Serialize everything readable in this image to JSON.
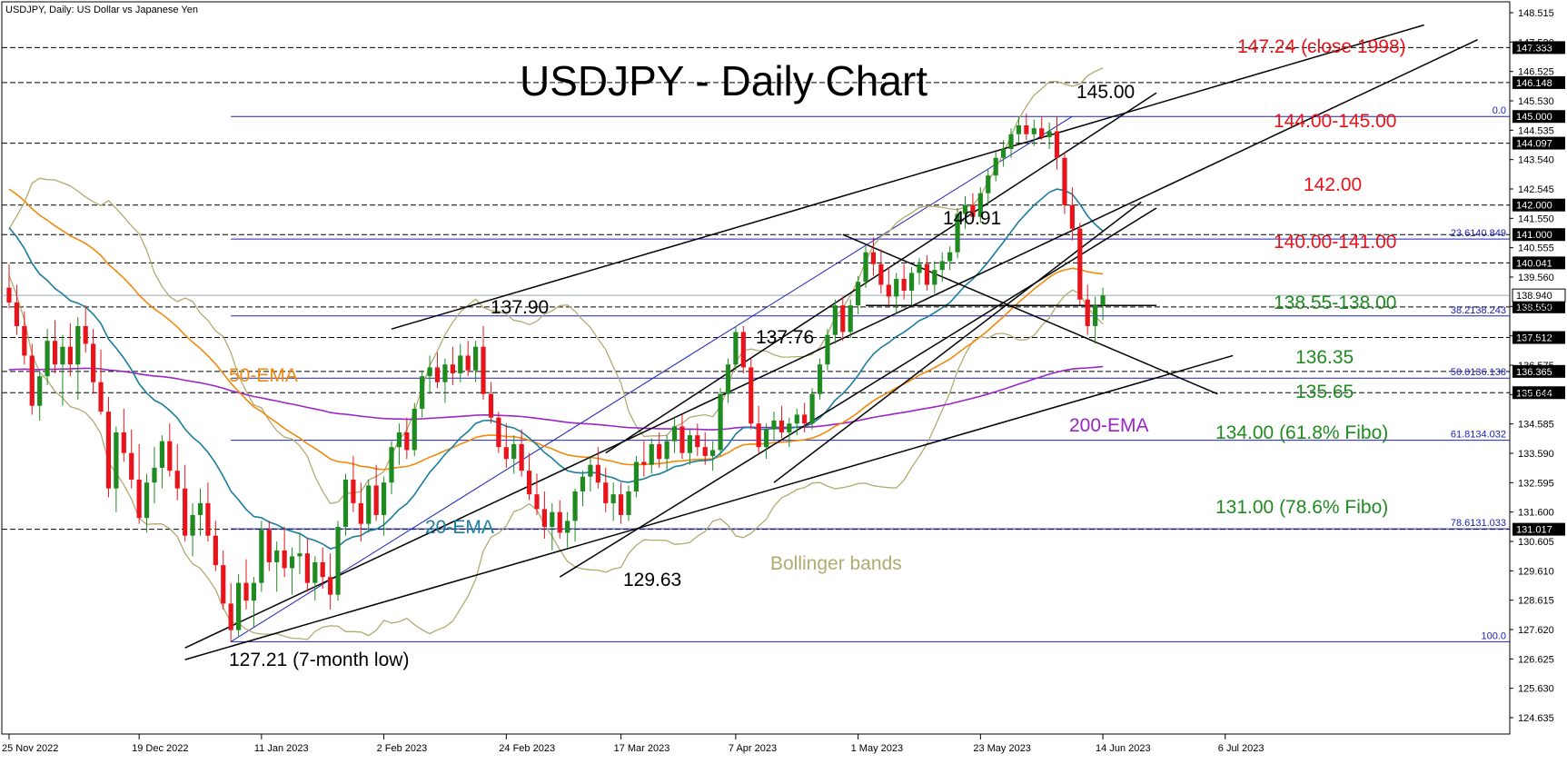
{
  "header": {
    "symbol_text": "USDJPY, Daily:  US Dollar vs Japanese Yen"
  },
  "chart_data": {
    "type": "candlestick",
    "title": "USDJPY - Daily Chart",
    "y_ticks": [
      "148.515",
      "147.520",
      "146.525",
      "145.530",
      "144.535",
      "143.540",
      "142.545",
      "141.550",
      "140.555",
      "139.560",
      "138.565",
      "137.570",
      "136.575",
      "135.580",
      "134.585",
      "133.590",
      "132.595",
      "131.600",
      "130.605",
      "129.610",
      "128.615",
      "127.620",
      "126.625",
      "125.630",
      "124.635"
    ],
    "y_tick_values": [
      148.515,
      147.52,
      146.525,
      145.53,
      144.535,
      143.54,
      142.545,
      141.55,
      140.555,
      139.56,
      138.565,
      137.57,
      136.575,
      135.58,
      134.585,
      133.59,
      132.595,
      131.6,
      130.605,
      129.61,
      128.615,
      127.62,
      126.625,
      125.63,
      124.635
    ],
    "x_labels": [
      {
        "label": "25 Nov 2022",
        "i": 0
      },
      {
        "label": "19 Dec 2022",
        "i": 17
      },
      {
        "label": "11 Jan 2023",
        "i": 33
      },
      {
        "label": "2 Feb 2023",
        "i": 49
      },
      {
        "label": "24 Feb 2023",
        "i": 65
      },
      {
        "label": "17 Mar 2023",
        "i": 80
      },
      {
        "label": "7 Apr 2023",
        "i": 95
      },
      {
        "label": "1 May 2023",
        "i": 111
      },
      {
        "label": "23 May 2023",
        "i": 127
      },
      {
        "label": "14 Jun 2023",
        "i": 143
      },
      {
        "label": "6 Jul 2023",
        "i": 159
      }
    ],
    "horizontal_levels": [
      {
        "value": 147.333,
        "label": "147.333"
      },
      {
        "value": 146.148,
        "label": "146.148"
      },
      {
        "value": 144.097,
        "label": "144.097"
      },
      {
        "value": 142.0,
        "label": "142.000"
      },
      {
        "value": 141.0,
        "label": "141.000"
      },
      {
        "value": 140.041,
        "label": "140.041"
      },
      {
        "value": 138.55,
        "label": "138.550"
      },
      {
        "value": 137.512,
        "label": "137.512"
      },
      {
        "value": 136.365,
        "label": "136.365"
      },
      {
        "value": 135.644,
        "label": "135.644"
      },
      {
        "value": 131.017,
        "label": "131.017"
      }
    ],
    "current_price": {
      "value": 138.94,
      "label": "138.940"
    },
    "fibonacci": [
      {
        "value": 145.0,
        "label": "0.0",
        "box": "145.000"
      },
      {
        "value": 140.849,
        "label": "23.6140.849"
      },
      {
        "value": 138.243,
        "label": "38.2138.243"
      },
      {
        "value": 136.138,
        "label": "50.0136.138"
      },
      {
        "value": 134.032,
        "label": "61.8134.032"
      },
      {
        "value": 131.033,
        "label": "78.6131.033"
      },
      {
        "value": 127.21,
        "label": "100.0"
      }
    ],
    "candles": [
      [
        139.2,
        140.0,
        138.5,
        138.7
      ],
      [
        138.7,
        139.3,
        137.6,
        137.9
      ],
      [
        137.9,
        138.4,
        136.6,
        136.9
      ],
      [
        136.9,
        137.3,
        134.9,
        135.2
      ],
      [
        135.2,
        136.4,
        134.7,
        136.2
      ],
      [
        136.2,
        137.8,
        135.9,
        137.4
      ],
      [
        137.4,
        138.1,
        136.3,
        136.6
      ],
      [
        136.6,
        137.6,
        135.2,
        137.2
      ],
      [
        137.2,
        138.0,
        136.2,
        136.6
      ],
      [
        136.6,
        138.2,
        135.4,
        137.9
      ],
      [
        137.9,
        138.6,
        137.0,
        137.3
      ],
      [
        137.3,
        137.8,
        135.6,
        136.0
      ],
      [
        136.0,
        137.1,
        134.9,
        135.0
      ],
      [
        135.0,
        135.5,
        132.1,
        132.4
      ],
      [
        132.4,
        134.5,
        131.6,
        134.3
      ],
      [
        134.3,
        135.1,
        133.3,
        133.6
      ],
      [
        133.6,
        134.4,
        132.4,
        132.7
      ],
      [
        132.7,
        133.9,
        131.2,
        131.4
      ],
      [
        131.4,
        132.9,
        130.9,
        132.6
      ],
      [
        132.6,
        133.8,
        131.9,
        133.1
      ],
      [
        133.1,
        134.2,
        132.4,
        134.0
      ],
      [
        134.0,
        134.6,
        132.8,
        133.0
      ],
      [
        133.0,
        133.9,
        132.0,
        132.4
      ],
      [
        132.4,
        133.2,
        130.6,
        130.8
      ],
      [
        130.8,
        131.9,
        130.1,
        131.5
      ],
      [
        131.5,
        132.4,
        130.8,
        131.9
      ],
      [
        131.9,
        132.6,
        130.6,
        130.8
      ],
      [
        130.8,
        131.3,
        129.6,
        129.8
      ],
      [
        129.8,
        130.3,
        128.3,
        128.5
      ],
      [
        128.5,
        129.2,
        127.2,
        127.6
      ],
      [
        127.6,
        129.5,
        127.4,
        129.2
      ],
      [
        129.2,
        130.0,
        128.3,
        128.6
      ],
      [
        128.6,
        129.4,
        127.7,
        129.2
      ],
      [
        129.2,
        131.3,
        128.9,
        131.0
      ],
      [
        131.0,
        131.3,
        129.6,
        129.9
      ],
      [
        129.9,
        130.6,
        128.9,
        130.3
      ],
      [
        130.3,
        131.1,
        129.4,
        129.7
      ],
      [
        129.7,
        130.4,
        128.8,
        130.1
      ],
      [
        130.1,
        130.9,
        129.5,
        130.2
      ],
      [
        130.2,
        130.7,
        128.9,
        129.2
      ],
      [
        129.2,
        130.1,
        128.6,
        129.9
      ],
      [
        129.9,
        130.4,
        129.0,
        129.4
      ],
      [
        129.4,
        130.2,
        128.3,
        128.8
      ],
      [
        128.8,
        131.3,
        128.6,
        131.1
      ],
      [
        131.1,
        132.9,
        130.8,
        132.7
      ],
      [
        132.7,
        133.5,
        131.6,
        131.9
      ],
      [
        131.9,
        132.6,
        130.6,
        131.2
      ],
      [
        131.2,
        132.7,
        130.9,
        132.5
      ],
      [
        132.5,
        133.2,
        131.3,
        131.5
      ],
      [
        131.5,
        132.8,
        130.8,
        132.6
      ],
      [
        132.6,
        134.0,
        132.2,
        133.8
      ],
      [
        133.8,
        134.6,
        133.2,
        134.3
      ],
      [
        134.3,
        134.8,
        133.4,
        133.7
      ],
      [
        133.7,
        135.3,
        133.5,
        135.1
      ],
      [
        135.1,
        136.4,
        134.8,
        136.2
      ],
      [
        136.2,
        136.9,
        135.6,
        136.5
      ],
      [
        136.5,
        137.0,
        135.8,
        136.0
      ],
      [
        136.0,
        136.8,
        135.3,
        136.6
      ],
      [
        136.6,
        137.2,
        135.9,
        136.3
      ],
      [
        136.3,
        137.3,
        136.0,
        136.9
      ],
      [
        136.9,
        137.4,
        136.2,
        136.4
      ],
      [
        136.4,
        137.4,
        136.0,
        137.2
      ],
      [
        137.2,
        137.9,
        135.4,
        135.6
      ],
      [
        135.6,
        136.0,
        134.6,
        134.8
      ],
      [
        134.8,
        135.0,
        133.6,
        133.8
      ],
      [
        133.8,
        134.6,
        133.1,
        133.4
      ],
      [
        133.4,
        134.2,
        132.9,
        133.9
      ],
      [
        133.9,
        134.4,
        132.8,
        133.0
      ],
      [
        133.0,
        133.6,
        132.0,
        132.2
      ],
      [
        132.2,
        132.9,
        131.5,
        131.7
      ],
      [
        131.7,
        132.3,
        130.7,
        131.1
      ],
      [
        131.1,
        131.9,
        130.3,
        131.6
      ],
      [
        131.6,
        132.0,
        130.7,
        130.9
      ],
      [
        130.9,
        131.6,
        130.4,
        131.3
      ],
      [
        131.3,
        132.4,
        130.6,
        132.3
      ],
      [
        132.3,
        133.0,
        131.8,
        132.8
      ],
      [
        132.8,
        133.5,
        132.3,
        133.2
      ],
      [
        133.2,
        133.8,
        132.4,
        132.6
      ],
      [
        132.6,
        133.1,
        131.6,
        131.9
      ],
      [
        131.9,
        132.6,
        131.3,
        132.2
      ],
      [
        132.2,
        132.6,
        131.2,
        131.5
      ],
      [
        131.5,
        132.5,
        131.3,
        132.3
      ],
      [
        132.3,
        133.5,
        132.1,
        133.3
      ],
      [
        133.3,
        134.0,
        132.8,
        133.2
      ],
      [
        133.2,
        134.1,
        132.9,
        133.9
      ],
      [
        133.9,
        134.3,
        133.1,
        133.4
      ],
      [
        133.4,
        134.2,
        133.0,
        134.0
      ],
      [
        134.0,
        134.8,
        133.6,
        134.5
      ],
      [
        134.5,
        134.9,
        133.4,
        133.6
      ],
      [
        133.6,
        134.4,
        133.2,
        134.2
      ],
      [
        134.2,
        134.6,
        133.5,
        133.8
      ],
      [
        133.8,
        134.3,
        133.2,
        133.5
      ],
      [
        133.5,
        134.0,
        133.0,
        133.7
      ],
      [
        133.7,
        135.8,
        133.5,
        135.6
      ],
      [
        135.6,
        136.8,
        135.3,
        136.6
      ],
      [
        136.6,
        137.9,
        136.4,
        137.7
      ],
      [
        137.7,
        137.9,
        136.3,
        136.5
      ],
      [
        136.5,
        136.8,
        134.4,
        134.6
      ],
      [
        134.6,
        135.2,
        133.6,
        133.8
      ],
      [
        133.8,
        134.6,
        133.4,
        134.4
      ],
      [
        134.4,
        135.0,
        134.0,
        134.7
      ],
      [
        134.7,
        135.2,
        134.1,
        134.3
      ],
      [
        134.3,
        134.8,
        133.8,
        134.6
      ],
      [
        134.6,
        135.1,
        134.2,
        134.9
      ],
      [
        134.9,
        135.3,
        134.3,
        134.6
      ],
      [
        134.6,
        135.8,
        134.4,
        135.6
      ],
      [
        135.6,
        136.8,
        135.4,
        136.6
      ],
      [
        136.6,
        137.8,
        136.4,
        137.6
      ],
      [
        137.6,
        138.8,
        137.3,
        138.6
      ],
      [
        138.6,
        138.9,
        137.4,
        137.7
      ],
      [
        137.7,
        138.8,
        137.5,
        138.6
      ],
      [
        138.6,
        139.6,
        138.3,
        139.4
      ],
      [
        139.4,
        140.6,
        139.2,
        140.4
      ],
      [
        140.4,
        140.9,
        139.6,
        140.0
      ],
      [
        140.0,
        140.5,
        139.0,
        139.3
      ],
      [
        139.3,
        139.9,
        138.6,
        138.9
      ],
      [
        138.9,
        139.7,
        138.3,
        139.5
      ],
      [
        139.5,
        140.0,
        138.8,
        139.1
      ],
      [
        139.1,
        139.9,
        138.6,
        139.7
      ],
      [
        139.7,
        140.2,
        139.3,
        140.0
      ],
      [
        140.0,
        140.3,
        139.1,
        139.3
      ],
      [
        139.3,
        140.1,
        139.0,
        139.8
      ],
      [
        139.8,
        140.4,
        139.4,
        140.1
      ],
      [
        140.1,
        140.6,
        139.8,
        140.4
      ],
      [
        140.4,
        141.9,
        140.2,
        141.7
      ],
      [
        141.7,
        142.3,
        141.2,
        142.0
      ],
      [
        142.0,
        142.4,
        141.4,
        141.6
      ],
      [
        141.6,
        142.6,
        141.4,
        142.4
      ],
      [
        142.4,
        143.2,
        142.0,
        143.0
      ],
      [
        143.0,
        143.8,
        142.8,
        143.6
      ],
      [
        143.6,
        144.2,
        143.3,
        143.9
      ],
      [
        143.9,
        144.6,
        143.6,
        144.4
      ],
      [
        144.4,
        145.0,
        144.1,
        144.7
      ],
      [
        144.7,
        145.1,
        144.2,
        144.4
      ],
      [
        144.4,
        144.9,
        144.0,
        144.6
      ],
      [
        144.6,
        145.0,
        144.2,
        144.3
      ],
      [
        144.3,
        144.8,
        143.9,
        144.5
      ],
      [
        144.5,
        145.0,
        143.2,
        143.6
      ],
      [
        143.6,
        143.8,
        141.7,
        142.0
      ],
      [
        142.0,
        142.6,
        140.8,
        141.2
      ],
      [
        141.2,
        141.4,
        138.6,
        138.8
      ],
      [
        138.8,
        139.3,
        137.6,
        137.9
      ],
      [
        137.9,
        138.9,
        137.3,
        138.6
      ],
      [
        138.6,
        139.2,
        138.1,
        138.94
      ]
    ],
    "series": [
      {
        "name": "50-EMA",
        "color": "#f08a0c"
      },
      {
        "name": "20-EMA",
        "color": "#1a7d9e"
      },
      {
        "name": "200-EMA",
        "color": "#9a25c8"
      },
      {
        "name": "Bollinger bands",
        "color": "#b3aa70"
      }
    ],
    "annotations": {
      "title": "USDJPY - Daily Chart",
      "close_1998": "147.24 (close 1998)",
      "zone_144_145": "144.00-145.00",
      "lvl_142": "142.00",
      "zone_140_141": "140.00-141.00",
      "zone_138": "138.55-138.00",
      "lvl_136_35": "136.35",
      "lvl_135_65": "135.65",
      "fibo_134": "134.00 (61.8% Fibo)",
      "fibo_131": "131.00 (78.6% Fibo)",
      "peak_145": "145.00",
      "peak_140_91": "140.91",
      "peak_137_90": "137.90",
      "peak_137_76": "137.76",
      "low_129_63": "129.63",
      "low_127_21": "127.21 (7-month low)",
      "ema50": "50-EMA",
      "ema20": "20-EMA",
      "ema200": "200-EMA",
      "bollinger": "Bollinger bands"
    }
  }
}
